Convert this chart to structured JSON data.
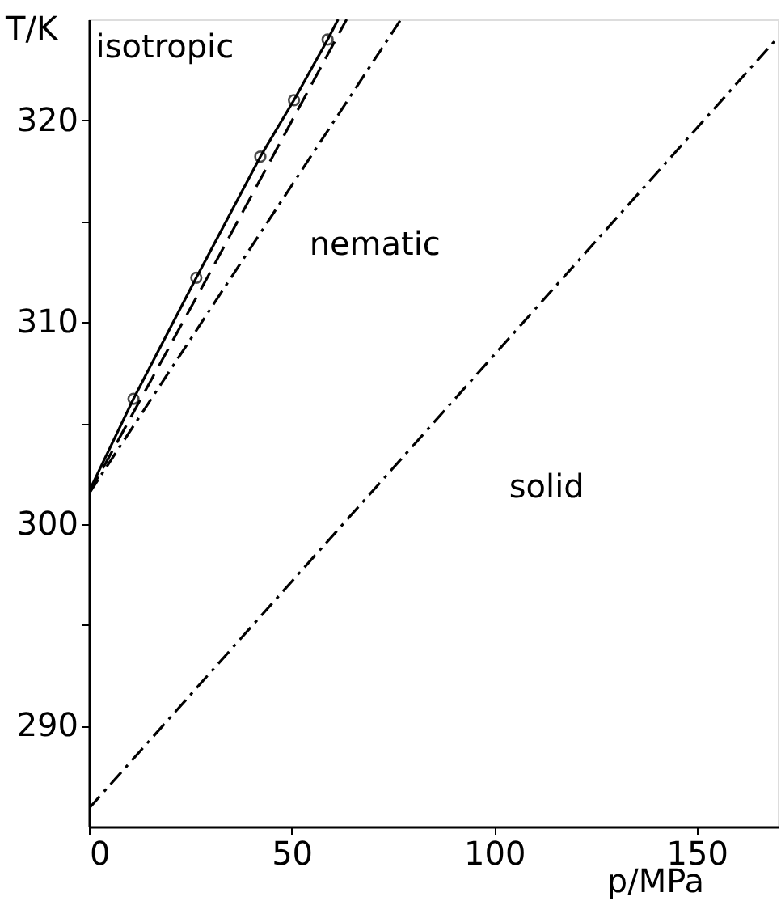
{
  "chart_data": {
    "type": "line",
    "xlabel": "p/MPa",
    "ylabel": "T/K",
    "xlim": [
      0,
      170
    ],
    "xticks": [
      0,
      50,
      100,
      150
    ],
    "ylim": [
      285,
      325
    ],
    "yticks": [
      {
        "value": 290,
        "label": "290"
      },
      {
        "value": 295,
        "label": null
      },
      {
        "value": 300,
        "label": "300"
      },
      {
        "value": 305,
        "label": null
      },
      {
        "value": 310,
        "label": "310"
      },
      {
        "value": 315,
        "label": null
      },
      {
        "value": 320,
        "label": "320"
      }
    ],
    "grid": false,
    "series": [
      {
        "type": "scatter",
        "marker": "circle",
        "color": "#000000",
        "x": [
          11,
          26.5,
          42.3,
          50.6,
          58.9
        ],
        "values": [
          306.2,
          312.2,
          318.2,
          321.0,
          324.0
        ]
      },
      {
        "type": "line",
        "line_style": "solid",
        "marker": "none",
        "color": "#000000",
        "x": [
          0,
          11,
          26.5,
          42.3,
          50.6,
          58.9,
          61.5
        ],
        "values": [
          301.6,
          306.2,
          312.2,
          318.2,
          321.0,
          324.0,
          325.0
        ]
      },
      {
        "type": "line",
        "line_style": "dashed",
        "marker": "none",
        "color": "#000000",
        "x": [
          0,
          30,
          63.6
        ],
        "values": [
          301.5,
          312.5,
          325.0
        ]
      },
      {
        "type": "line",
        "line_style": "dashdot",
        "marker": "none",
        "color": "#000000",
        "x": [
          0,
          77
        ],
        "values": [
          301.5,
          325.0
        ]
      },
      {
        "type": "line",
        "line_style": "dashdot",
        "marker": "none",
        "color": "#000000",
        "x": [
          0,
          170
        ],
        "values": [
          285.9,
          324.1
        ]
      }
    ],
    "annotations": [
      "isotropic",
      "nematic",
      "solid"
    ]
  }
}
